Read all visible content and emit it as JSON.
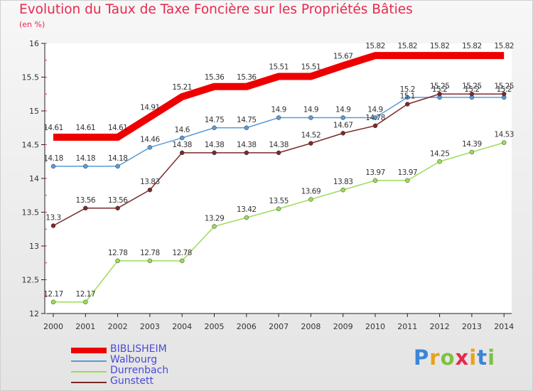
{
  "chart_data": {
    "type": "line",
    "title": "Evolution du Taux de Taxe Foncière sur les Propriétés Bâties",
    "ylabel": "(en %)",
    "categories": [
      "2000",
      "2001",
      "2002",
      "2003",
      "2004",
      "2005",
      "2006",
      "2007",
      "2008",
      "2009",
      "2010",
      "2011",
      "2012",
      "2013",
      "2014"
    ],
    "ylim": [
      12,
      16
    ],
    "yticks": [
      "12",
      "12.5",
      "13",
      "13.5",
      "14",
      "14.5",
      "15",
      "15.5",
      "16"
    ],
    "series": [
      {
        "name": "BIBLISHEIM",
        "color": "#ee0000",
        "values": [
          14.61,
          14.61,
          14.61,
          14.91,
          15.21,
          15.36,
          15.36,
          15.51,
          15.51,
          15.67,
          15.82,
          15.82,
          15.82,
          15.82,
          15.82
        ],
        "labels": [
          "14.61",
          "14.61",
          "14.61",
          "14.91",
          "15.21",
          "15.36",
          "15.36",
          "15.51",
          "15.51",
          "15.67",
          "15.82",
          "15.82",
          "15.82",
          "15.82",
          "15.82"
        ]
      },
      {
        "name": "Walbourg",
        "color": "#5b9bd5",
        "values": [
          14.18,
          14.18,
          14.18,
          14.46,
          14.6,
          14.75,
          14.75,
          14.9,
          14.9,
          14.9,
          14.9,
          15.2,
          15.2,
          15.2,
          15.2
        ],
        "labels": [
          "14.18",
          "14.18",
          "14.18",
          "14.46",
          "14.6",
          "14.75",
          "14.75",
          "14.9",
          "14.9",
          "14.9",
          "14.9",
          "15.2",
          "15.2",
          "15.2",
          "15.2"
        ]
      },
      {
        "name": "Durrenbach",
        "color": "#9cdb5a",
        "values": [
          12.17,
          12.17,
          12.78,
          12.78,
          12.78,
          13.29,
          13.42,
          13.55,
          13.69,
          13.83,
          13.97,
          13.97,
          14.25,
          14.39,
          14.53
        ],
        "labels": [
          "12.17",
          "12.17",
          "12.78",
          "12.78",
          "12.78",
          "13.29",
          "13.42",
          "13.55",
          "13.69",
          "13.83",
          "13.97",
          "13.97",
          "14.25",
          "14.39",
          "14.53"
        ]
      },
      {
        "name": "Gunstett",
        "color": "#7a2a2a",
        "values": [
          13.3,
          13.56,
          13.56,
          13.83,
          14.38,
          14.38,
          14.38,
          14.38,
          14.52,
          14.67,
          14.78,
          15.1,
          15.25,
          15.25,
          15.25
        ],
        "labels": [
          "13.3",
          "13.56",
          "13.56",
          "13.83",
          "14.38",
          "14.38",
          "14.38",
          "14.38",
          "14.52",
          "14.67",
          "14.78",
          "15.1",
          "15.25",
          "15.25",
          "15.25"
        ]
      }
    ],
    "legend_position": "bottom-left",
    "grid": false
  },
  "logo": {
    "text": [
      "P",
      "r",
      "o",
      "x",
      "i",
      "t",
      "i"
    ],
    "colors": [
      "#3a86d8",
      "#e8a21a",
      "#7cc242",
      "#e8284c",
      "#e8a21a",
      "#3a86d8",
      "#7cc242"
    ]
  }
}
